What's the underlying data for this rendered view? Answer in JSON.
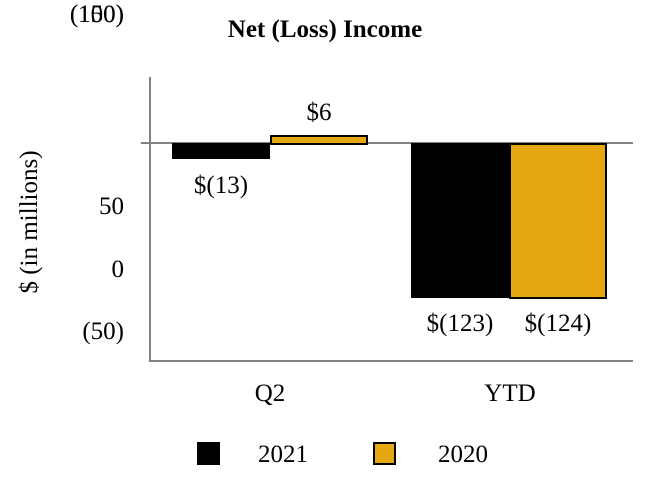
{
  "chart_data": {
    "type": "bar",
    "title": "Net (Loss) Income",
    "xlabel": "",
    "ylabel": "$ (in millions)",
    "categories": [
      "Q2",
      "YTD"
    ],
    "series": [
      {
        "name": "2021",
        "color": "#000000",
        "values": [
          -13,
          -123
        ],
        "value_labels": [
          "$(13)",
          "$(123)"
        ]
      },
      {
        "name": "2020",
        "color": "#E5A712",
        "values": [
          6,
          -124
        ],
        "value_labels": [
          "$6",
          "$(124)"
        ]
      }
    ],
    "yticks": [
      50,
      0,
      -50,
      -100,
      -150
    ],
    "ytick_labels": [
      "50",
      "0",
      "(50)",
      "(100)",
      "(150)"
    ],
    "ylim": [
      -175,
      55
    ],
    "grid": false,
    "legend_position": "bottom",
    "axis_color": "#828282"
  }
}
